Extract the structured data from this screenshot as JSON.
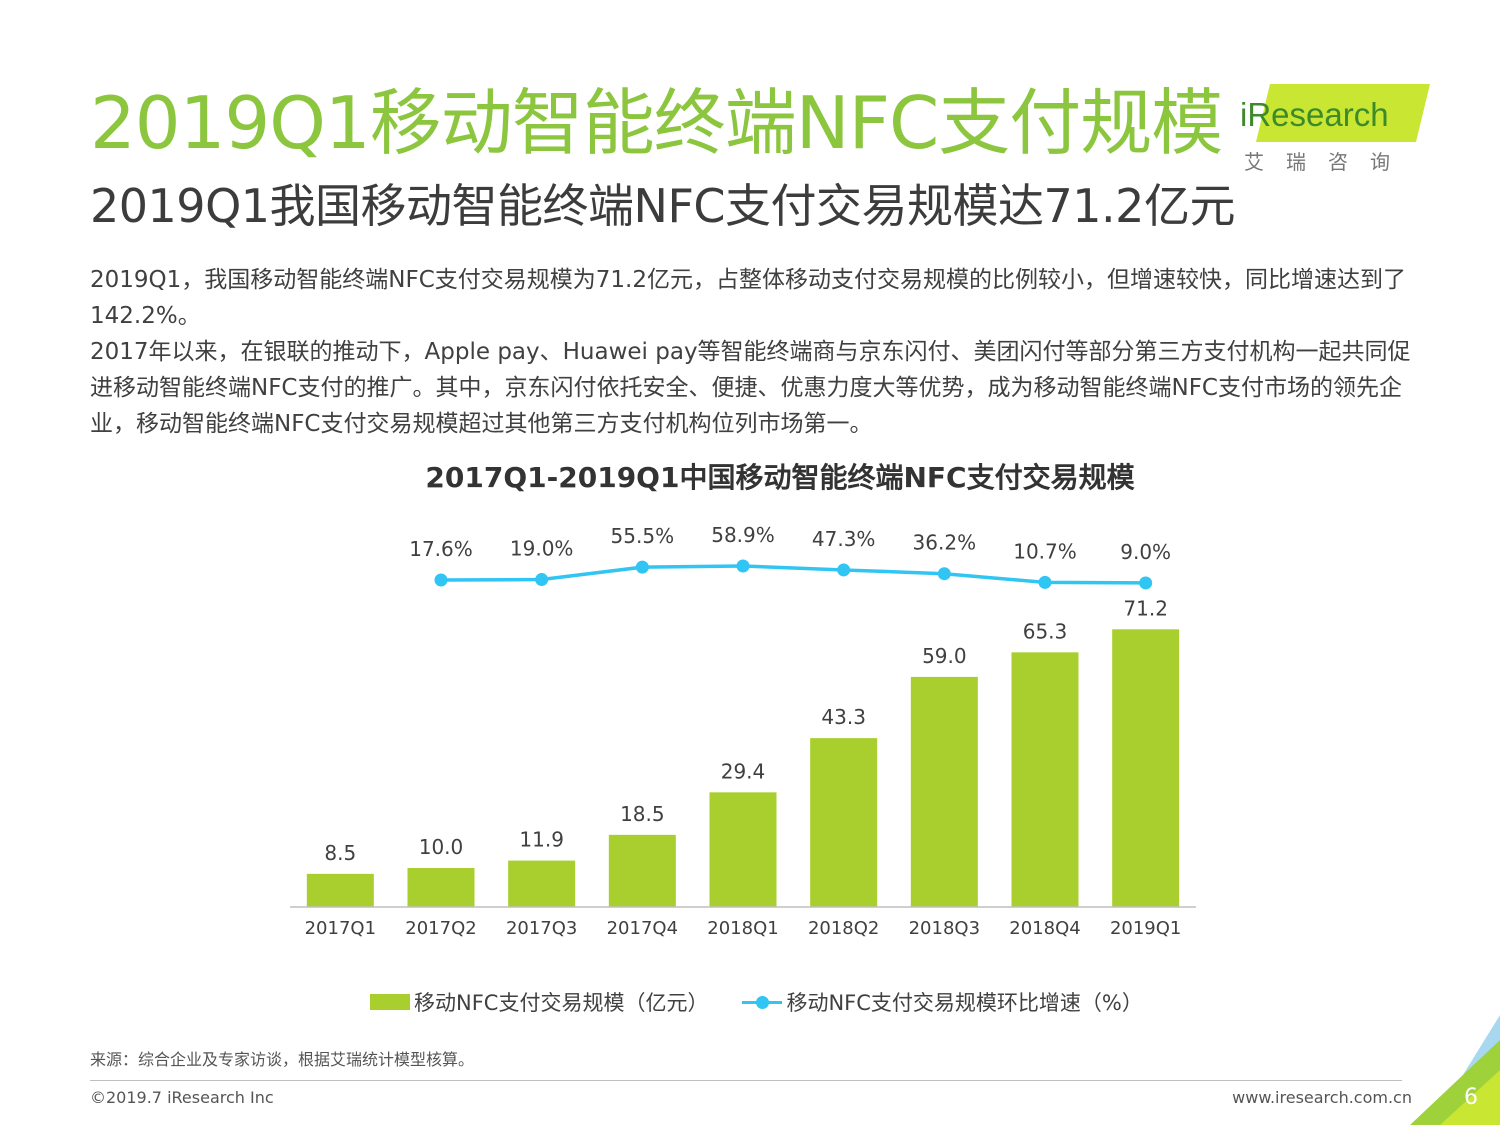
{
  "header": {
    "title": "2019Q1移动智能终端NFC支付规模",
    "subtitle": "2019Q1我国移动智能终端NFC支付交易规模达71.2亿元"
  },
  "logo": {
    "text": "iResearch",
    "cn_text": "艾瑞咨询"
  },
  "body": {
    "paragraph_1": "2019Q1，我国移动智能终端NFC支付交易规模为71.2亿元，占整体移动支付交易规模的比例较小，但增速较快，同比增速达到了142.2%。",
    "paragraph_2": "2017年以来，在银联的推动下，Apple pay、Huawei pay等智能终端商与京东闪付、美团闪付等部分第三方支付机构一起共同促进移动智能终端NFC支付的推广。其中，京东闪付依托安全、便捷、优惠力度大等优势，成为移动智能终端NFC支付市场的领先企业，移动智能终端NFC支付交易规模超过其他第三方支付机构位列市场第一。"
  },
  "chart_data": {
    "type": "bar",
    "title": "2017Q1-2019Q1中国移动智能终端NFC支付交易规模",
    "categories": [
      "2017Q1",
      "2017Q2",
      "2017Q3",
      "2017Q4",
      "2018Q1",
      "2018Q2",
      "2018Q3",
      "2018Q4",
      "2019Q1"
    ],
    "series": [
      {
        "name": "移动NFC支付交易规模（亿元）",
        "type": "bar",
        "values": [
          8.5,
          10.0,
          11.9,
          18.5,
          29.4,
          43.3,
          59.0,
          65.3,
          71.2
        ],
        "labels": [
          "8.5",
          "10.0",
          "11.9",
          "18.5",
          "29.4",
          "43.3",
          "59.0",
          "65.3",
          "71.2"
        ],
        "color": "#a8cf2e"
      },
      {
        "name": "移动NFC支付交易规模环比增速（%）",
        "type": "line",
        "values": [
          17.6,
          19.0,
          55.5,
          58.9,
          47.3,
          36.2,
          10.7,
          9.0
        ],
        "x": [
          "2017Q2",
          "2017Q3",
          "2017Q4",
          "2018Q1",
          "2018Q2",
          "2018Q3",
          "2018Q4",
          "2019Q1"
        ],
        "labels": [
          "17.6%",
          "19.0%",
          "55.5%",
          "58.9%",
          "47.3%",
          "36.2%",
          "10.7%",
          "9.0%"
        ],
        "color": "#31c5f4"
      }
    ],
    "legend_position": "bottom",
    "grid": false
  },
  "footer": {
    "source": "来源：综合企业及专家访谈，根据艾瑞统计模型核算。",
    "copyright": "©2019.7 iResearch Inc",
    "website": "www.iresearch.com.cn",
    "page_number": "6"
  },
  "colors": {
    "title_green": "#8cc63f",
    "bar_green": "#a8cf2e",
    "line_blue": "#31c5f4",
    "logo_green": "#c8e632"
  }
}
